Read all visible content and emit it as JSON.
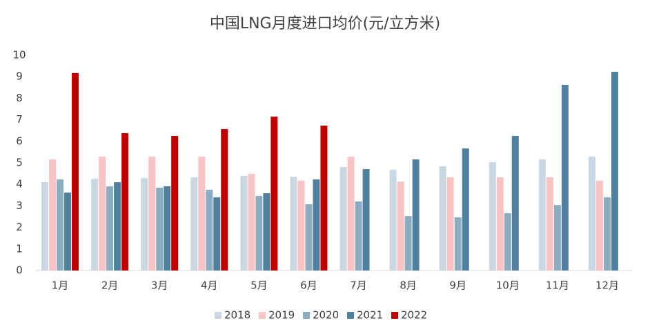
{
  "chart_data": {
    "type": "bar",
    "title": "中国LNG月度进口均价(元/立方米)",
    "categories": [
      "1月",
      "2月",
      "3月",
      "4月",
      "5月",
      "6月",
      "7月",
      "8月",
      "9月",
      "10月",
      "11月",
      "12月"
    ],
    "series": [
      {
        "name": "2018",
        "color": "#c8d7e2",
        "values": [
          4.1,
          4.26,
          4.29,
          4.33,
          4.39,
          4.36,
          4.81,
          4.68,
          4.84,
          5.03,
          5.16,
          5.29
        ]
      },
      {
        "name": "2019",
        "color": "#f9c5c4",
        "values": [
          5.16,
          5.29,
          5.29,
          5.29,
          4.49,
          4.17,
          5.29,
          4.13,
          4.33,
          4.33,
          4.33,
          4.17
        ]
      },
      {
        "name": "2020",
        "color": "#8badc0",
        "values": [
          4.23,
          3.91,
          3.85,
          3.75,
          3.46,
          3.08,
          3.21,
          2.53,
          2.47,
          2.66,
          3.04,
          3.4
        ]
      },
      {
        "name": "2021",
        "color": "#4e80a0",
        "values": [
          3.62,
          4.1,
          3.91,
          3.4,
          3.59,
          4.23,
          4.71,
          5.16,
          5.67,
          6.25,
          8.62,
          9.23
        ]
      },
      {
        "name": "2022",
        "color": "#c00000",
        "values": [
          9.17,
          6.38,
          6.25,
          6.57,
          7.15,
          6.73,
          null,
          null,
          null,
          null,
          null,
          null
        ]
      }
    ],
    "ylim": [
      0,
      10
    ],
    "yticks": [
      0,
      1,
      2,
      3,
      4,
      5,
      6,
      7,
      8,
      9,
      10
    ],
    "grid": false,
    "legend": "bottom"
  }
}
